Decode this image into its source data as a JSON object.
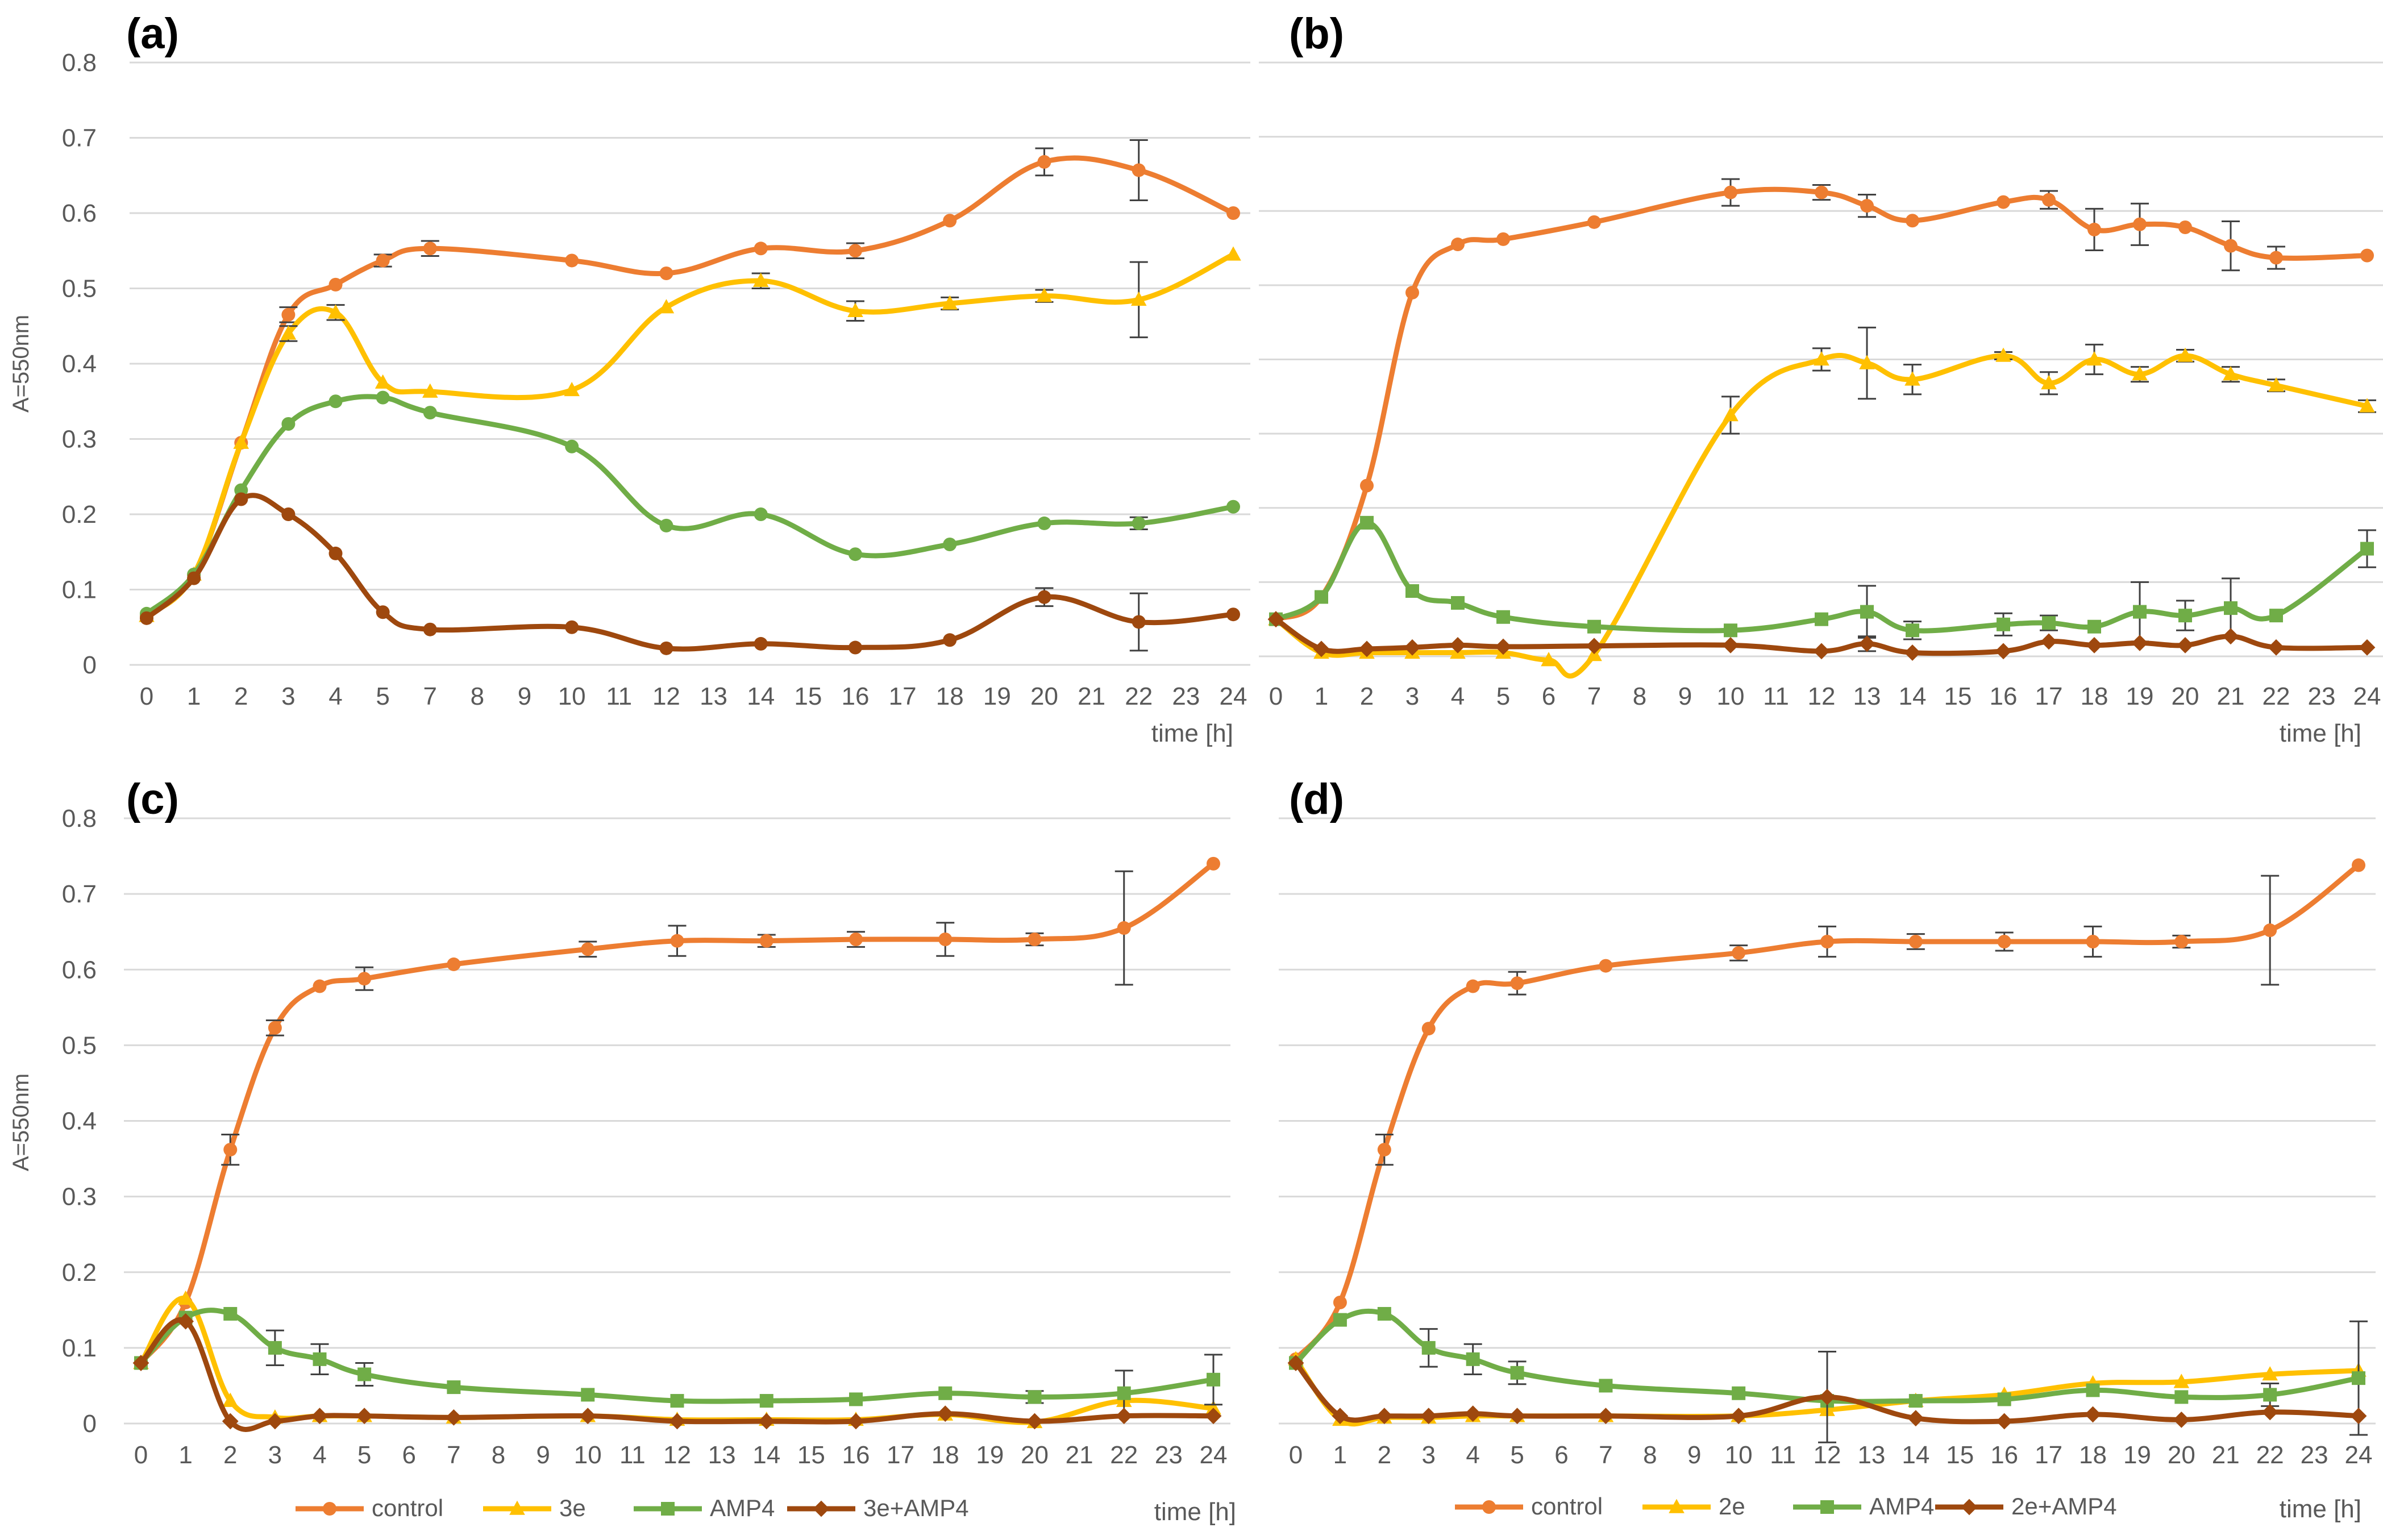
{
  "colors": {
    "control": "#ED7D31",
    "treat": "#FFC000",
    "amp4": "#70AD47",
    "combo": "#9E480E"
  },
  "chart_data": [
    {
      "type": "line",
      "panel_label": "(a)",
      "ylabel": "A=550nm",
      "xlabel": "time [h]",
      "ylim": [
        0,
        0.8
      ],
      "yticks": [
        "0",
        "0.1",
        "0.2",
        "0.3",
        "0.4",
        "0.5",
        "0.6",
        "0.7",
        "0.8"
      ],
      "categories": [
        "0",
        "1",
        "2",
        "3",
        "4",
        "5",
        "7",
        "8",
        "9",
        "10",
        "11",
        "12",
        "13",
        "14",
        "15",
        "16",
        "17",
        "18",
        "19",
        "20",
        "21",
        "22",
        "23",
        "24"
      ],
      "series": [
        {
          "name": "control",
          "color": "#ED7D31",
          "marker": "circle",
          "x": [
            0,
            1,
            2,
            3,
            4,
            5,
            7,
            10,
            12,
            14,
            16,
            18,
            20,
            22,
            24
          ],
          "y": [
            0.065,
            0.12,
            0.295,
            0.465,
            0.505,
            0.537,
            0.553,
            0.537,
            0.52,
            0.553,
            0.55,
            0.59,
            0.668,
            0.657,
            0.6
          ],
          "err": [
            0,
            0,
            0,
            0.01,
            0,
            0.008,
            0.01,
            0,
            0,
            0,
            0.01,
            0,
            0.018,
            0.04,
            0
          ]
        },
        {
          "name": "3e",
          "color": "#FFC000",
          "marker": "triangle",
          "x": [
            0,
            1,
            2,
            3,
            4,
            5,
            7,
            10,
            12,
            14,
            16,
            18,
            20,
            22,
            24
          ],
          "y": [
            0.065,
            0.12,
            0.295,
            0.44,
            0.468,
            0.375,
            0.363,
            0.365,
            0.475,
            0.51,
            0.47,
            0.48,
            0.49,
            0.485,
            0.545
          ],
          "err": [
            0,
            0,
            0,
            0.01,
            0.01,
            0,
            0,
            0,
            0,
            0.01,
            0.013,
            0.008,
            0.008,
            0.05,
            0
          ]
        },
        {
          "name": "AMP4",
          "color": "#70AD47",
          "marker": "circle",
          "x": [
            0,
            1,
            2,
            3,
            4,
            5,
            7,
            10,
            12,
            14,
            16,
            18,
            20,
            22,
            24
          ],
          "y": [
            0.068,
            0.12,
            0.232,
            0.32,
            0.35,
            0.355,
            0.335,
            0.29,
            0.185,
            0.2,
            0.147,
            0.16,
            0.188,
            0.188,
            0.21
          ],
          "err": [
            0,
            0,
            0,
            0,
            0,
            0,
            0,
            0,
            0,
            0,
            0,
            0,
            0,
            0.008,
            0
          ]
        },
        {
          "name": "3e+AMP4",
          "color": "#9E480E",
          "marker": "circle",
          "x": [
            0,
            1,
            2,
            3,
            4,
            5,
            7,
            10,
            12,
            14,
            16,
            18,
            20,
            22,
            24
          ],
          "y": [
            0.062,
            0.115,
            0.22,
            0.2,
            0.148,
            0.07,
            0.047,
            0.05,
            0.022,
            0.028,
            0.023,
            0.033,
            0.09,
            0.057,
            0.067
          ],
          "err": [
            0,
            0,
            0,
            0,
            0,
            0,
            0,
            0,
            0,
            0,
            0,
            0,
            0.012,
            0.038,
            0
          ]
        }
      ]
    },
    {
      "type": "line",
      "panel_label": "(b)",
      "ylabel": "",
      "xlabel": "time [h]",
      "ylim": [
        0,
        0.8
      ],
      "yticks": [],
      "categories": [
        "0",
        "1",
        "2",
        "3",
        "4",
        "5",
        "6",
        "7",
        "8",
        "9",
        "10",
        "11",
        "12",
        "13",
        "14",
        "15",
        "16",
        "17",
        "18",
        "19",
        "20",
        "21",
        "22",
        "23",
        "24"
      ],
      "series": [
        {
          "name": "control",
          "color": "#ED7D31",
          "marker": "circle",
          "x": [
            0,
            1,
            2,
            3,
            4,
            5,
            7,
            10,
            12,
            13,
            14,
            16,
            17,
            18,
            19,
            20,
            21,
            22,
            24
          ],
          "y": [
            0.05,
            0.08,
            0.23,
            0.49,
            0.555,
            0.562,
            0.585,
            0.625,
            0.625,
            0.607,
            0.587,
            0.612,
            0.615,
            0.575,
            0.582,
            0.578,
            0.553,
            0.537,
            0.54
          ],
          "err": [
            0,
            0,
            0,
            0,
            0,
            0,
            0,
            0.018,
            0.01,
            0.015,
            0,
            0,
            0.012,
            0.028,
            0.028,
            0,
            0.033,
            0.015,
            0
          ]
        },
        {
          "name": "2e",
          "color": "#FFC000",
          "marker": "triangle",
          "x": [
            0,
            1,
            2,
            3,
            4,
            5,
            6,
            7,
            10,
            12,
            13,
            14,
            16,
            17,
            18,
            19,
            20,
            21,
            22,
            24
          ],
          "y": [
            0.05,
            0.005,
            0.005,
            0.005,
            0.005,
            0.005,
            -0.005,
            0.002,
            0.325,
            0.4,
            0.395,
            0.373,
            0.405,
            0.368,
            0.4,
            0.38,
            0.405,
            0.38,
            0.365,
            0.337
          ],
          "err": [
            0,
            0,
            0,
            0,
            0,
            0,
            0,
            0,
            0.025,
            0.015,
            0.048,
            0.02,
            0.005,
            0.015,
            0.02,
            0.01,
            0.008,
            0.01,
            0.008,
            0.008
          ]
        },
        {
          "name": "AMP4",
          "color": "#70AD47",
          "marker": "square",
          "x": [
            0,
            1,
            2,
            3,
            4,
            5,
            7,
            10,
            12,
            13,
            14,
            16,
            17,
            18,
            19,
            20,
            21,
            22,
            24
          ],
          "y": [
            0.05,
            0.08,
            0.18,
            0.088,
            0.072,
            0.053,
            0.04,
            0.035,
            0.05,
            0.06,
            0.035,
            0.043,
            0.045,
            0.04,
            0.06,
            0.055,
            0.065,
            0.055,
            0.145
          ],
          "err": [
            0,
            0,
            0,
            0,
            0,
            0,
            0,
            0,
            0,
            0.035,
            0.012,
            0.015,
            0.01,
            0,
            0.04,
            0.02,
            0.04,
            0,
            0.025
          ]
        },
        {
          "name": "2e+AMP4",
          "color": "#9E480E",
          "marker": "diamond",
          "x": [
            0,
            1,
            2,
            3,
            4,
            5,
            7,
            10,
            12,
            13,
            14,
            16,
            17,
            18,
            19,
            20,
            21,
            22,
            24
          ],
          "y": [
            0.05,
            0.01,
            0.01,
            0.012,
            0.015,
            0.013,
            0.014,
            0.015,
            0.007,
            0.017,
            0.005,
            0.007,
            0.02,
            0.015,
            0.018,
            0.015,
            0.027,
            0.012,
            0.012
          ],
          "err": [
            0,
            0,
            0,
            0,
            0,
            0,
            0,
            0,
            0,
            0.01,
            0,
            0,
            0,
            0,
            0,
            0,
            0,
            0,
            0
          ]
        }
      ]
    },
    {
      "type": "line",
      "panel_label": "(c)",
      "ylabel": "A=550nm",
      "xlabel": "time [h]",
      "ylim": [
        0,
        0.8
      ],
      "yticks": [
        "0",
        "0.1",
        "0.2",
        "0.3",
        "0.4",
        "0.5",
        "0.6",
        "0.7",
        "0.8"
      ],
      "categories": [
        "0",
        "1",
        "2",
        "3",
        "4",
        "5",
        "6",
        "7",
        "8",
        "9",
        "10",
        "11",
        "12",
        "13",
        "14",
        "15",
        "16",
        "17",
        "18",
        "19",
        "20",
        "21",
        "22",
        "23",
        "24"
      ],
      "series": [
        {
          "name": "control",
          "color": "#ED7D31",
          "marker": "circle",
          "x": [
            0,
            1,
            2,
            3,
            4,
            5,
            7,
            10,
            12,
            14,
            16,
            18,
            20,
            22,
            24
          ],
          "y": [
            0.08,
            0.16,
            0.362,
            0.523,
            0.578,
            0.588,
            0.607,
            0.627,
            0.638,
            0.638,
            0.64,
            0.64,
            0.64,
            0.655,
            0.74
          ],
          "err": [
            0,
            0,
            0.02,
            0.01,
            0,
            0.015,
            0,
            0.01,
            0.02,
            0.008,
            0.01,
            0.022,
            0.008,
            0.075,
            0
          ]
        },
        {
          "name": "3e",
          "color": "#FFC000",
          "marker": "triangle",
          "x": [
            0,
            1,
            2,
            3,
            4,
            5,
            7,
            10,
            12,
            14,
            16,
            18,
            20,
            22,
            24
          ],
          "y": [
            0.08,
            0.165,
            0.03,
            0.008,
            0.01,
            0.01,
            0.008,
            0.01,
            0.005,
            0.005,
            0.005,
            0.012,
            0.002,
            0.03,
            0.02
          ],
          "err": [
            0,
            0,
            0,
            0,
            0,
            0,
            0,
            0,
            0,
            0,
            0,
            0,
            0,
            0,
            0
          ]
        },
        {
          "name": "AMP4",
          "color": "#70AD47",
          "marker": "square",
          "x": [
            0,
            1,
            2,
            3,
            4,
            5,
            7,
            10,
            12,
            14,
            16,
            18,
            20,
            22,
            24
          ],
          "y": [
            0.08,
            0.14,
            0.145,
            0.1,
            0.085,
            0.065,
            0.048,
            0.038,
            0.03,
            0.03,
            0.032,
            0.04,
            0.035,
            0.04,
            0.058
          ],
          "err": [
            0,
            0,
            0,
            0.023,
            0.02,
            0.015,
            0,
            0,
            0,
            0,
            0,
            0,
            0.008,
            0.03,
            0.033
          ]
        },
        {
          "name": "3e+AMP4",
          "color": "#9E480E",
          "marker": "diamond",
          "x": [
            0,
            1,
            2,
            3,
            4,
            5,
            7,
            10,
            12,
            14,
            16,
            18,
            20,
            22,
            24
          ],
          "y": [
            0.08,
            0.135,
            0.003,
            0.003,
            0.01,
            0.01,
            0.008,
            0.01,
            0.003,
            0.003,
            0.003,
            0.013,
            0.003,
            0.01,
            0.01
          ],
          "err": [
            0,
            0,
            0,
            0,
            0,
            0,
            0,
            0,
            0,
            0,
            0,
            0,
            0,
            0,
            0
          ]
        }
      ],
      "legend": [
        "control",
        "3e",
        "AMP4",
        "3e+AMP4"
      ]
    },
    {
      "type": "line",
      "panel_label": "(d)",
      "ylabel": "",
      "xlabel": "time [h]",
      "ylim": [
        0,
        0.8
      ],
      "yticks": [],
      "categories": [
        "0",
        "1",
        "2",
        "3",
        "4",
        "5",
        "6",
        "7",
        "8",
        "9",
        "10",
        "11",
        "12",
        "13",
        "14",
        "15",
        "16",
        "17",
        "18",
        "19",
        "20",
        "21",
        "22",
        "23",
        "24"
      ],
      "series": [
        {
          "name": "control",
          "color": "#ED7D31",
          "marker": "circle",
          "x": [
            0,
            1,
            2,
            3,
            4,
            5,
            7,
            10,
            12,
            14,
            16,
            18,
            20,
            22,
            24
          ],
          "y": [
            0.085,
            0.16,
            0.362,
            0.522,
            0.578,
            0.582,
            0.605,
            0.622,
            0.637,
            0.637,
            0.637,
            0.637,
            0.637,
            0.652,
            0.738
          ],
          "err": [
            0,
            0,
            0.02,
            0,
            0,
            0.015,
            0,
            0.01,
            0.02,
            0.01,
            0.012,
            0.02,
            0.008,
            0.072,
            0
          ]
        },
        {
          "name": "2e",
          "color": "#FFC000",
          "marker": "triangle",
          "x": [
            0,
            1,
            2,
            3,
            4,
            5,
            7,
            10,
            12,
            14,
            16,
            18,
            20,
            22,
            24
          ],
          "y": [
            0.085,
            0.005,
            0.008,
            0.008,
            0.01,
            0.01,
            0.01,
            0.01,
            0.018,
            0.03,
            0.038,
            0.053,
            0.055,
            0.065,
            0.07
          ],
          "err": [
            0,
            0,
            0,
            0,
            0,
            0,
            0,
            0,
            0,
            0,
            0,
            0,
            0,
            0,
            0
          ]
        },
        {
          "name": "AMP4",
          "color": "#70AD47",
          "marker": "square",
          "x": [
            0,
            1,
            2,
            3,
            4,
            5,
            7,
            10,
            12,
            14,
            16,
            18,
            20,
            22,
            24
          ],
          "y": [
            0.08,
            0.137,
            0.145,
            0.1,
            0.085,
            0.067,
            0.05,
            0.04,
            0.03,
            0.03,
            0.032,
            0.044,
            0.035,
            0.038,
            0.06
          ],
          "err": [
            0,
            0,
            0,
            0.025,
            0.02,
            0.015,
            0,
            0,
            0,
            0,
            0,
            0,
            0,
            0.015,
            0.075
          ]
        },
        {
          "name": "2e+AMP4",
          "color": "#9E480E",
          "marker": "diamond",
          "x": [
            0,
            1,
            2,
            3,
            4,
            5,
            7,
            10,
            12,
            14,
            16,
            18,
            20,
            22,
            24
          ],
          "y": [
            0.08,
            0.01,
            0.01,
            0.01,
            0.013,
            0.01,
            0.01,
            0.01,
            0.035,
            0.007,
            0.003,
            0.012,
            0.005,
            0.015,
            0.01
          ],
          "err": [
            0,
            0,
            0,
            0,
            0,
            0,
            0,
            0,
            0.06,
            0,
            0,
            0,
            0,
            0,
            0
          ]
        }
      ],
      "legend": [
        "control",
        "2e",
        "AMP4",
        "2e+AMP4"
      ]
    }
  ]
}
